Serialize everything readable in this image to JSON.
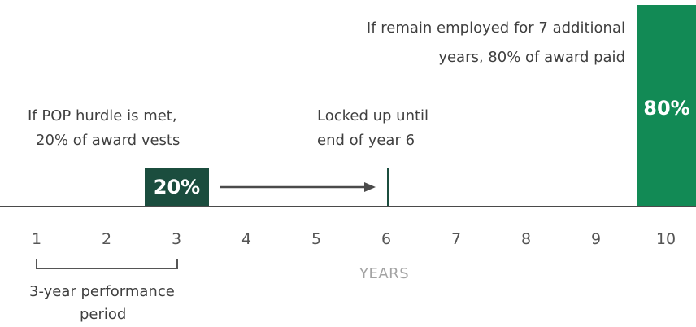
{
  "annotations": {
    "pop_hurdle_line1": "If POP hurdle is met,",
    "pop_hurdle_line2": "20% of award vests",
    "locked_line1": "Locked up until",
    "locked_line2": "end of year 6",
    "remain_line1": "If remain employed for 7 additional",
    "remain_line2": "years, 80% of award paid",
    "performance_line1": "3-year performance",
    "performance_line2": "period"
  },
  "blocks": {
    "first_vest_label": "20%",
    "final_payment_label": "80%"
  },
  "axis": {
    "title": "YEARS",
    "ticks": [
      "1",
      "2",
      "3",
      "4",
      "5",
      "6",
      "7",
      "8",
      "9",
      "10"
    ]
  },
  "colors": {
    "dark_green": "#1b4d3e",
    "bright_green": "#128a55",
    "text": "#3f3f3f",
    "axis_title": "#a3a3a3"
  }
}
